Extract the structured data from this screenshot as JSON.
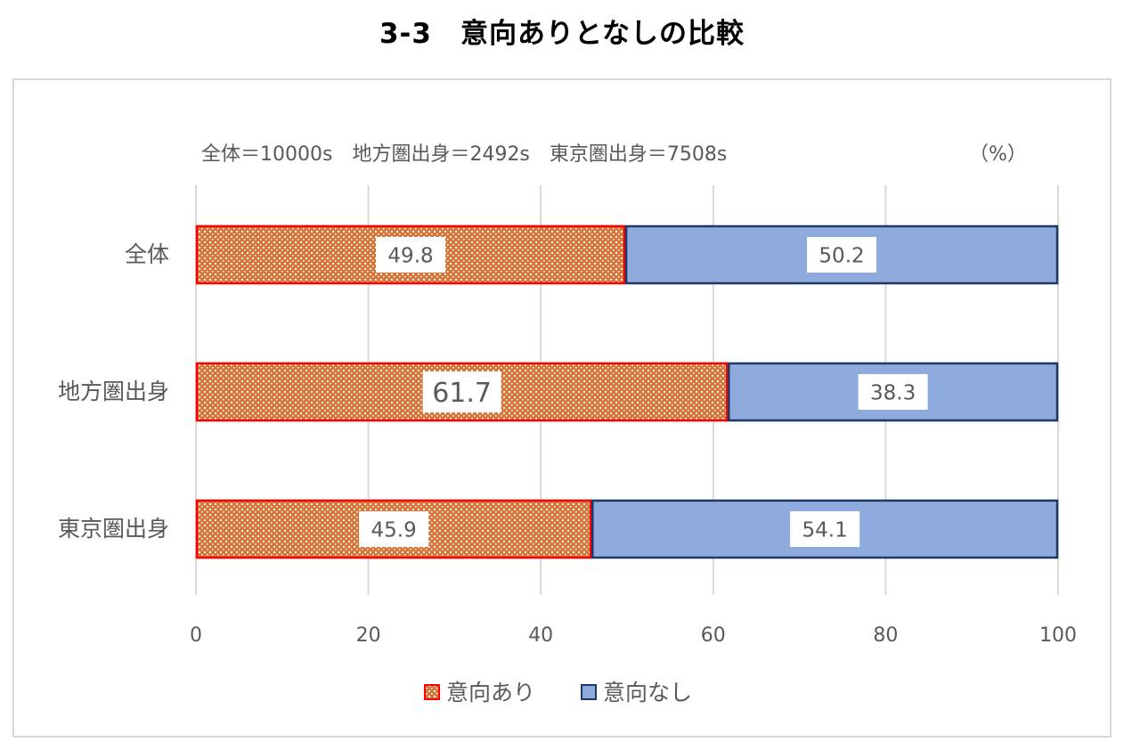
{
  "page_title": "3-3　意向ありとなしの比較",
  "chart_data": {
    "type": "bar",
    "orientation": "horizontal",
    "stacked": true,
    "subtitle": "全体＝10000s　地方圏出身＝2492s　東京圏出身＝7508s",
    "unit_label": "（%）",
    "categories": [
      "全体",
      "地方圏出身",
      "東京圏出身"
    ],
    "series": [
      {
        "name": "意向あり",
        "values": [
          49.8,
          61.7,
          45.9
        ],
        "labels": [
          "49.8",
          "61.7",
          "45.9"
        ]
      },
      {
        "name": "意向なし",
        "values": [
          50.2,
          38.3,
          54.1
        ],
        "labels": [
          "50.2",
          "38.3",
          "54.1"
        ]
      }
    ],
    "xlim": [
      0,
      100
    ],
    "xticks": [
      "0",
      "20",
      "40",
      "60",
      "80",
      "100"
    ],
    "grid": true,
    "legend_position": "bottom",
    "colors": {
      "ari_fill": "#d9773a",
      "ari_dots": "#ffffff",
      "ari_border": "#ff0000",
      "nashi_fill": "#8faadc",
      "nashi_border": "#1f3864",
      "grid": "#d9d9d9",
      "text": "#595959"
    }
  }
}
